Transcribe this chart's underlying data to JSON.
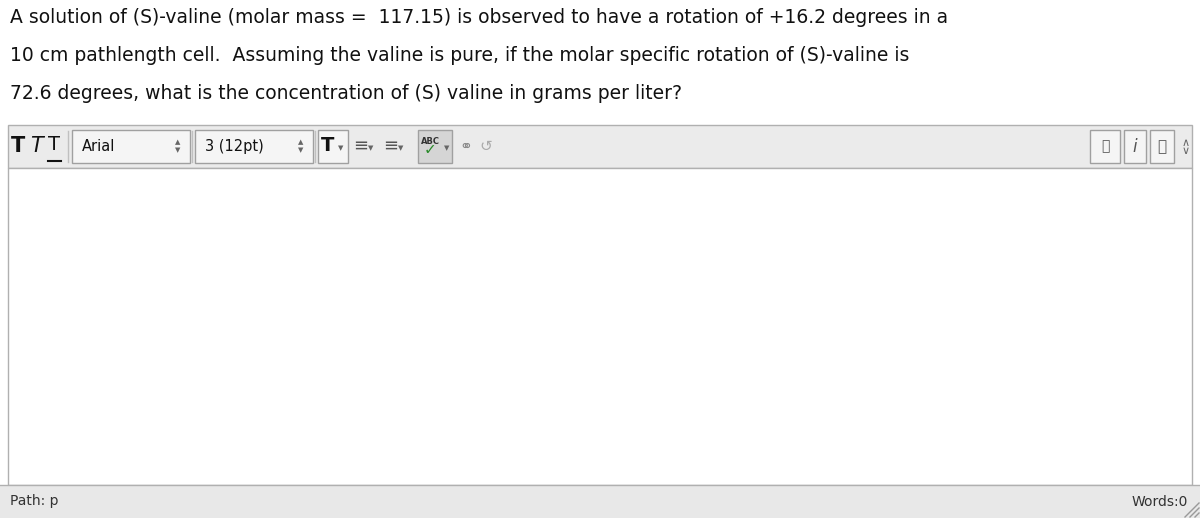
{
  "question_text_line1": "A solution of (S)-valine (molar mass =  117.15) is observed to have a rotation of +16.2 degrees in a",
  "question_text_line2": "10 cm pathlength cell.  Assuming the valine is pure, if the molar specific rotation of (S)-valine is",
  "question_text_line3": "72.6 degrees, what is the concentration of (S) valine in grams per liter?",
  "toolbar_bg": "#ebebeb",
  "toolbar_border": "#b0b0b0",
  "editor_bg": "#ffffff",
  "editor_border": "#b0b0b0",
  "footer_bg": "#e8e8e8",
  "footer_border": "#b0b0b0",
  "outer_bg": "#ffffff",
  "path_text": "Path: p",
  "words_text": "Words:0",
  "question_fontsize": 13.5,
  "footer_fontsize": 10,
  "text_color": "#111111",
  "toolbar_text_color": "#222222"
}
